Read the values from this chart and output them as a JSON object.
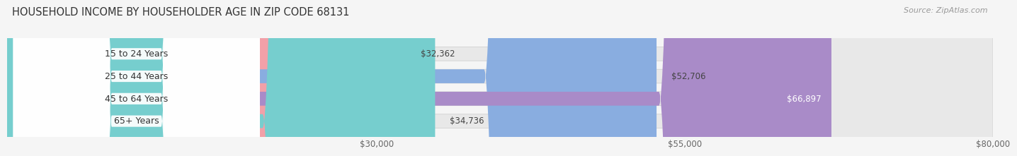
{
  "title": "HOUSEHOLD INCOME BY HOUSEHOLDER AGE IN ZIP CODE 68131",
  "source_text": "Source: ZipAtlas.com",
  "categories": [
    "15 to 24 Years",
    "25 to 44 Years",
    "45 to 64 Years",
    "65+ Years"
  ],
  "values": [
    32362,
    52706,
    66897,
    34736
  ],
  "bar_colors": [
    "#f2a0a8",
    "#89ade0",
    "#a98bc8",
    "#76cece"
  ],
  "bar_bg_color": "#e8e8e8",
  "value_labels": [
    "$32,362",
    "$52,706",
    "$66,897",
    "$34,736"
  ],
  "xmin": 0,
  "xmax": 80000,
  "xticks": [
    30000,
    55000,
    80000
  ],
  "xtick_labels": [
    "$30,000",
    "$55,000",
    "$80,000"
  ],
  "background_color": "#f5f5f5",
  "title_fontsize": 10.5,
  "source_fontsize": 8,
  "label_fontsize": 9,
  "tick_fontsize": 8.5,
  "value_label_fontsize": 8.5
}
